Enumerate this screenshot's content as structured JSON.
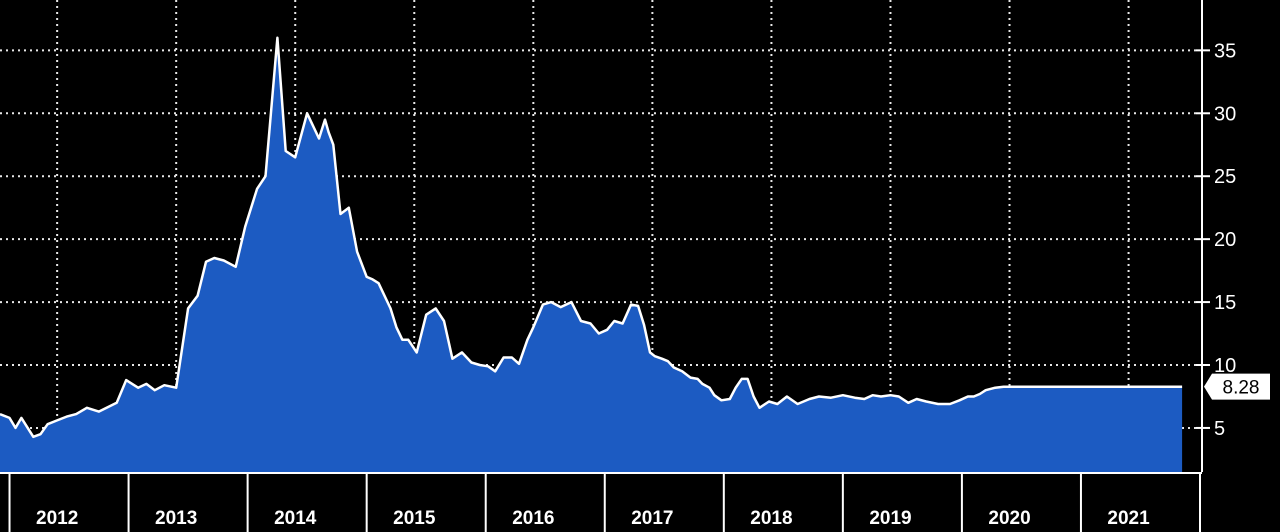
{
  "chart_data": {
    "type": "area",
    "title": "",
    "xlabel": "",
    "ylabel": "",
    "x_tick_labels": [
      "2012",
      "2013",
      "2014",
      "2015",
      "2016",
      "2017",
      "2018",
      "2019",
      "2020",
      "2021"
    ],
    "xlim": [
      2011.72,
      2021.8
    ],
    "ylim": [
      1.5,
      39
    ],
    "y_ticks": [
      5,
      10,
      15,
      20,
      25,
      30,
      35
    ],
    "y_axis_position": "right",
    "grid": true,
    "last_value_label": "8.28",
    "series": [
      {
        "x": [
          2011.72,
          2011.8,
          2011.85,
          2011.9,
          2012.0,
          2012.06,
          2012.12,
          2012.2,
          2012.28,
          2012.36,
          2012.45,
          2012.55,
          2012.7,
          2012.78,
          2012.88,
          2012.95,
          2013.02,
          2013.1,
          2013.2,
          2013.3,
          2013.38,
          2013.45,
          2013.52,
          2013.6,
          2013.7,
          2013.78,
          2013.88,
          2013.95,
          2014.05,
          2014.12,
          2014.2,
          2014.3,
          2014.4,
          2014.45,
          2014.48,
          2014.52,
          2014.58,
          2014.65,
          2014.72,
          2014.8,
          2014.85,
          2014.9,
          2015.0,
          2015.05,
          2015.1,
          2015.15,
          2015.22,
          2015.3,
          2015.38,
          2015.45,
          2015.52,
          2015.6,
          2015.68,
          2015.75,
          2015.82,
          2015.88,
          2015.95,
          2016.02,
          2016.08,
          2016.15,
          2016.2,
          2016.28,
          2016.35,
          2016.43,
          2016.52,
          2016.6,
          2016.68,
          2016.75,
          2016.82,
          2016.88,
          2016.95,
          2017.02,
          2017.08,
          2017.13,
          2017.18,
          2017.22,
          2017.28,
          2017.33,
          2017.38,
          2017.45,
          2017.52,
          2017.58,
          2017.62,
          2017.68,
          2017.72,
          2017.78,
          2017.85,
          2017.9,
          2017.95,
          2018.0,
          2018.05,
          2018.1,
          2018.18,
          2018.25,
          2018.33,
          2018.42,
          2018.52,
          2018.6,
          2018.7,
          2018.8,
          2018.9,
          2018.98,
          2019.05,
          2019.12,
          2019.2,
          2019.27,
          2019.35,
          2019.42,
          2019.5,
          2019.6,
          2019.7,
          2019.78,
          2019.85,
          2019.9,
          2019.95,
          2020.0,
          2020.08,
          2020.15,
          2020.22,
          2020.28,
          2020.35,
          2020.42,
          2020.5,
          2020.6,
          2020.7,
          2020.8,
          2020.88,
          2020.95,
          2021.02,
          2021.1,
          2021.18,
          2021.25,
          2021.32,
          2021.4,
          2021.47,
          2021.53,
          2021.57,
          2021.6,
          2021.65
        ],
        "values": [
          6.1,
          5.8,
          5.0,
          5.8,
          4.3,
          4.5,
          5.3,
          5.6,
          5.9,
          6.1,
          6.6,
          6.3,
          7.0,
          8.8,
          8.2,
          8.5,
          8.0,
          8.4,
          8.2,
          14.5,
          15.5,
          18.2,
          18.5,
          18.3,
          17.8,
          21.0,
          24.0,
          25.0,
          36.0,
          27.0,
          26.5,
          30.0,
          28.0,
          29.5,
          28.5,
          27.5,
          22.0,
          22.5,
          19.0,
          17.0,
          16.8,
          16.5,
          14.5,
          13.0,
          12.0,
          12.0,
          11.0,
          14.0,
          14.5,
          13.5,
          10.5,
          11.0,
          10.2,
          10.0,
          9.9,
          9.5,
          10.6,
          10.6,
          10.1,
          12.0,
          13.0,
          14.8,
          15.0,
          14.6,
          15.0,
          13.5,
          13.3,
          12.5,
          12.8,
          13.5,
          13.3,
          14.8,
          14.7,
          13.2,
          11.0,
          10.7,
          10.5,
          10.3,
          9.8,
          9.5,
          9.0,
          8.9,
          8.5,
          8.2,
          7.6,
          7.2,
          7.3,
          8.2,
          8.9,
          8.9,
          7.5,
          6.6,
          7.1,
          6.9,
          7.5,
          6.9,
          7.3,
          7.5,
          7.4,
          7.6,
          7.4,
          7.3,
          7.6,
          7.5,
          7.6,
          7.5,
          7.0,
          7.3,
          7.1,
          6.9,
          6.9,
          7.2,
          7.5,
          7.5,
          7.7,
          8.0,
          8.2,
          8.28,
          8.28,
          8.28,
          8.28,
          8.28,
          8.28,
          8.28,
          8.28,
          8.28,
          8.28,
          8.28,
          8.28,
          8.28,
          8.28,
          8.28,
          8.28,
          8.28,
          8.28,
          8.28,
          8.28,
          8.28,
          8.28
        ]
      }
    ],
    "colors": {
      "background": "#000000",
      "fill": "#1c5bc2",
      "line": "#ffffff",
      "grid": "#e8e8e8",
      "label_box": "#ffffff"
    }
  }
}
